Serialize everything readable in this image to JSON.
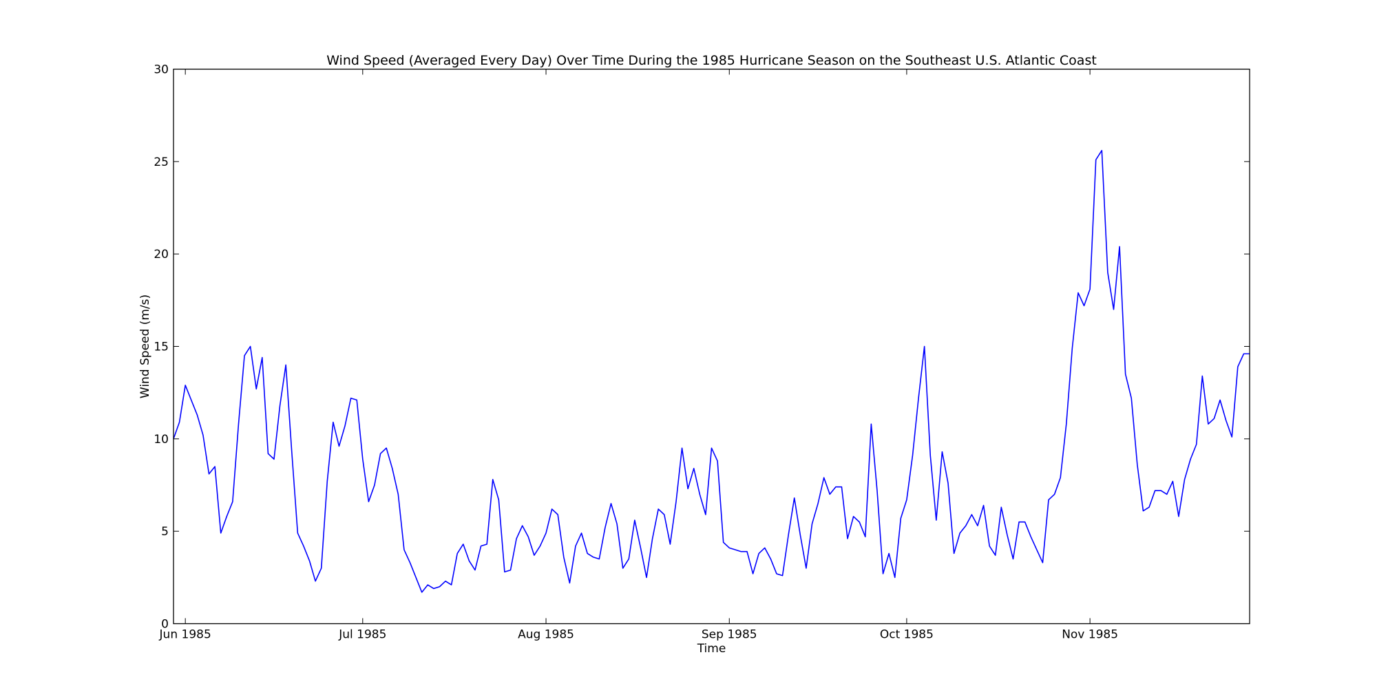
{
  "chart_data": {
    "type": "line",
    "title": "Wind Speed (Averaged Every Day) Over Time During the 1985 Hurricane Season on the Southeast U.S. Atlantic Coast",
    "xlabel": "Time",
    "ylabel": "Wind Speed (m/s)",
    "xlim": [
      "1985-05-30",
      "1985-11-28"
    ],
    "ylim": [
      0,
      30
    ],
    "x_ticks": [
      {
        "date": "1985-06-01",
        "label": "Jun 1985"
      },
      {
        "date": "1985-07-01",
        "label": "Jul 1985"
      },
      {
        "date": "1985-08-01",
        "label": "Aug 1985"
      },
      {
        "date": "1985-09-01",
        "label": "Sep 1985"
      },
      {
        "date": "1985-10-01",
        "label": "Oct 1985"
      },
      {
        "date": "1985-11-01",
        "label": "Nov 1985"
      }
    ],
    "y_ticks": [
      {
        "value": 0,
        "label": "0"
      },
      {
        "value": 5,
        "label": "5"
      },
      {
        "value": 10,
        "label": "10"
      },
      {
        "value": 15,
        "label": "15"
      },
      {
        "value": 20,
        "label": "20"
      },
      {
        "value": 25,
        "label": "25"
      },
      {
        "value": 30,
        "label": "30"
      }
    ],
    "grid": false,
    "legend": false,
    "series": [
      {
        "color": "#0000ff",
        "x_start": "1985-05-30",
        "x_step_days": 1,
        "values": [
          10.0,
          10.9,
          12.9,
          12.1,
          11.3,
          10.2,
          8.1,
          8.5,
          4.9,
          5.8,
          6.6,
          10.8,
          14.5,
          15.0,
          12.7,
          14.4,
          9.2,
          8.9,
          11.8,
          14.0,
          9.3,
          4.9,
          4.2,
          3.4,
          2.3,
          3.0,
          7.7,
          10.9,
          9.6,
          10.7,
          12.2,
          12.1,
          8.9,
          6.6,
          7.5,
          9.2,
          9.5,
          8.4,
          7.0,
          4.0,
          3.3,
          2.5,
          1.7,
          2.1,
          1.9,
          2.0,
          2.3,
          2.1,
          3.8,
          4.3,
          3.4,
          2.9,
          4.2,
          4.3,
          7.8,
          6.7,
          2.8,
          2.9,
          4.6,
          5.3,
          4.7,
          3.7,
          4.2,
          4.9,
          6.2,
          5.9,
          3.6,
          2.2,
          4.2,
          4.9,
          3.8,
          3.6,
          3.5,
          5.2,
          6.5,
          5.4,
          3.0,
          3.5,
          5.6,
          4.1,
          2.5,
          4.6,
          6.2,
          5.9,
          4.3,
          6.6,
          9.5,
          7.3,
          8.4,
          7.0,
          5.9,
          9.5,
          8.8,
          4.4,
          4.1,
          4.0,
          3.9,
          3.9,
          2.7,
          3.8,
          4.1,
          3.5,
          2.7,
          2.6,
          4.8,
          6.8,
          4.8,
          3.0,
          5.4,
          6.5,
          7.9,
          7.0,
          7.4,
          7.4,
          4.6,
          5.8,
          5.5,
          4.7,
          10.8,
          7.2,
          2.7,
          3.8,
          2.5,
          5.7,
          6.7,
          9.1,
          12.2,
          15.0,
          9.1,
          5.6,
          9.3,
          7.6,
          3.8,
          4.9,
          5.3,
          5.9,
          5.3,
          6.4,
          4.2,
          3.7,
          6.3,
          4.8,
          3.5,
          5.5,
          5.5,
          4.7,
          4.0,
          3.3,
          6.7,
          7.0,
          7.9,
          10.8,
          14.9,
          17.9,
          17.2,
          18.1,
          25.1,
          25.6,
          19.0,
          17.0,
          20.4,
          13.5,
          12.2,
          8.6,
          6.1,
          6.3,
          7.2,
          7.2,
          7.0,
          7.7,
          5.8,
          7.8,
          8.9,
          9.7,
          13.4,
          10.8,
          11.1,
          12.1,
          11.0,
          10.1,
          13.9,
          14.6,
          14.6
        ]
      }
    ]
  }
}
